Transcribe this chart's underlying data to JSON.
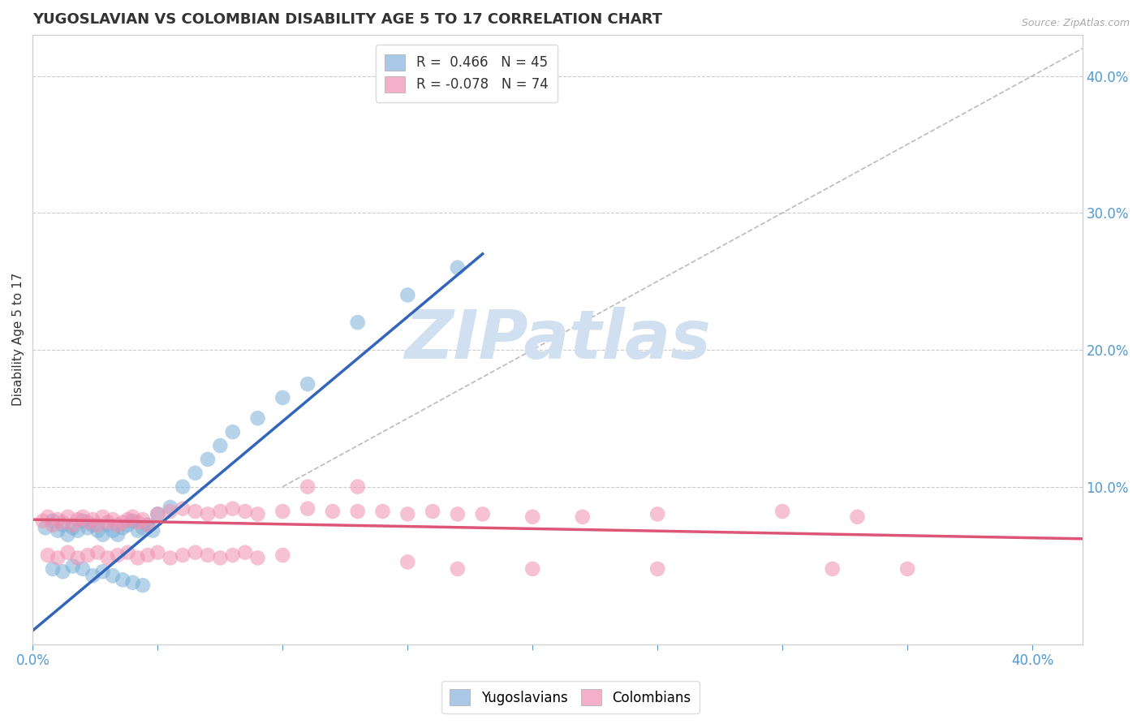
{
  "title": "YUGOSLAVIAN VS COLOMBIAN DISABILITY AGE 5 TO 17 CORRELATION CHART",
  "source_text": "Source: ZipAtlas.com",
  "ylabel": "Disability Age 5 to 17",
  "xlim": [
    0.0,
    0.42
  ],
  "ylim": [
    -0.015,
    0.43
  ],
  "title_color": "#333333",
  "title_fontsize": 13,
  "tick_color": "#5599cc",
  "watermark": "ZIPatlas",
  "watermark_color": "#d0e0f0",
  "yug_color": "#7ab0d8",
  "col_color": "#f090b0",
  "yug_line_color": "#3366bb",
  "col_line_color": "#dd5577",
  "ref_line_color": "#bbbbbb",
  "yug_line_x": [
    0.0,
    0.18
  ],
  "yug_line_y": [
    -0.005,
    0.27
  ],
  "col_line_x": [
    0.0,
    0.42
  ],
  "col_line_y": [
    0.076,
    0.062
  ],
  "ref_line_x": [
    0.1,
    0.42
  ],
  "ref_line_y": [
    0.1,
    0.42
  ],
  "legend_entries": [
    {
      "label": "R =  0.466   N = 45",
      "color": "#aac8e8"
    },
    {
      "label": "R = -0.078   N = 74",
      "color": "#f4b0c8"
    }
  ],
  "legend_bottom_entries": [
    {
      "label": "Yugoslavians",
      "color": "#aac8e8"
    },
    {
      "label": "Colombians",
      "color": "#f4b0c8"
    }
  ],
  "yug_scatter_x": [
    0.005,
    0.008,
    0.01,
    0.012,
    0.014,
    0.016,
    0.018,
    0.02,
    0.022,
    0.024,
    0.026,
    0.028,
    0.03,
    0.032,
    0.034,
    0.036,
    0.038,
    0.04,
    0.042,
    0.044,
    0.046,
    0.048,
    0.05,
    0.055,
    0.06,
    0.065,
    0.07,
    0.075,
    0.08,
    0.09,
    0.1,
    0.11,
    0.13,
    0.15,
    0.17,
    0.008,
    0.012,
    0.016,
    0.02,
    0.024,
    0.028,
    0.032,
    0.036,
    0.04,
    0.044
  ],
  "yug_scatter_y": [
    0.07,
    0.075,
    0.068,
    0.072,
    0.065,
    0.07,
    0.068,
    0.075,
    0.07,
    0.072,
    0.068,
    0.065,
    0.072,
    0.068,
    0.065,
    0.07,
    0.072,
    0.075,
    0.068,
    0.07,
    0.072,
    0.068,
    0.08,
    0.085,
    0.1,
    0.11,
    0.12,
    0.13,
    0.14,
    0.15,
    0.165,
    0.175,
    0.22,
    0.24,
    0.26,
    0.04,
    0.038,
    0.042,
    0.04,
    0.035,
    0.038,
    0.035,
    0.032,
    0.03,
    0.028
  ],
  "col_scatter_x": [
    0.004,
    0.006,
    0.008,
    0.01,
    0.012,
    0.014,
    0.016,
    0.018,
    0.02,
    0.022,
    0.024,
    0.026,
    0.028,
    0.03,
    0.032,
    0.034,
    0.036,
    0.038,
    0.04,
    0.042,
    0.044,
    0.046,
    0.05,
    0.055,
    0.06,
    0.065,
    0.07,
    0.075,
    0.08,
    0.085,
    0.09,
    0.1,
    0.11,
    0.12,
    0.13,
    0.14,
    0.15,
    0.16,
    0.17,
    0.18,
    0.2,
    0.22,
    0.25,
    0.3,
    0.33,
    0.006,
    0.01,
    0.014,
    0.018,
    0.022,
    0.026,
    0.03,
    0.034,
    0.038,
    0.042,
    0.046,
    0.05,
    0.055,
    0.06,
    0.065,
    0.07,
    0.075,
    0.08,
    0.085,
    0.09,
    0.1,
    0.11,
    0.13,
    0.15,
    0.17,
    0.2,
    0.25,
    0.32,
    0.35
  ],
  "col_scatter_y": [
    0.075,
    0.078,
    0.072,
    0.076,
    0.074,
    0.078,
    0.072,
    0.076,
    0.078,
    0.074,
    0.076,
    0.072,
    0.078,
    0.074,
    0.076,
    0.072,
    0.074,
    0.076,
    0.078,
    0.074,
    0.076,
    0.072,
    0.08,
    0.082,
    0.084,
    0.082,
    0.08,
    0.082,
    0.084,
    0.082,
    0.08,
    0.082,
    0.084,
    0.082,
    0.082,
    0.082,
    0.08,
    0.082,
    0.08,
    0.08,
    0.078,
    0.078,
    0.08,
    0.082,
    0.078,
    0.05,
    0.048,
    0.052,
    0.048,
    0.05,
    0.052,
    0.048,
    0.05,
    0.052,
    0.048,
    0.05,
    0.052,
    0.048,
    0.05,
    0.052,
    0.05,
    0.048,
    0.05,
    0.052,
    0.048,
    0.05,
    0.1,
    0.1,
    0.045,
    0.04,
    0.04,
    0.04,
    0.04,
    0.04
  ]
}
